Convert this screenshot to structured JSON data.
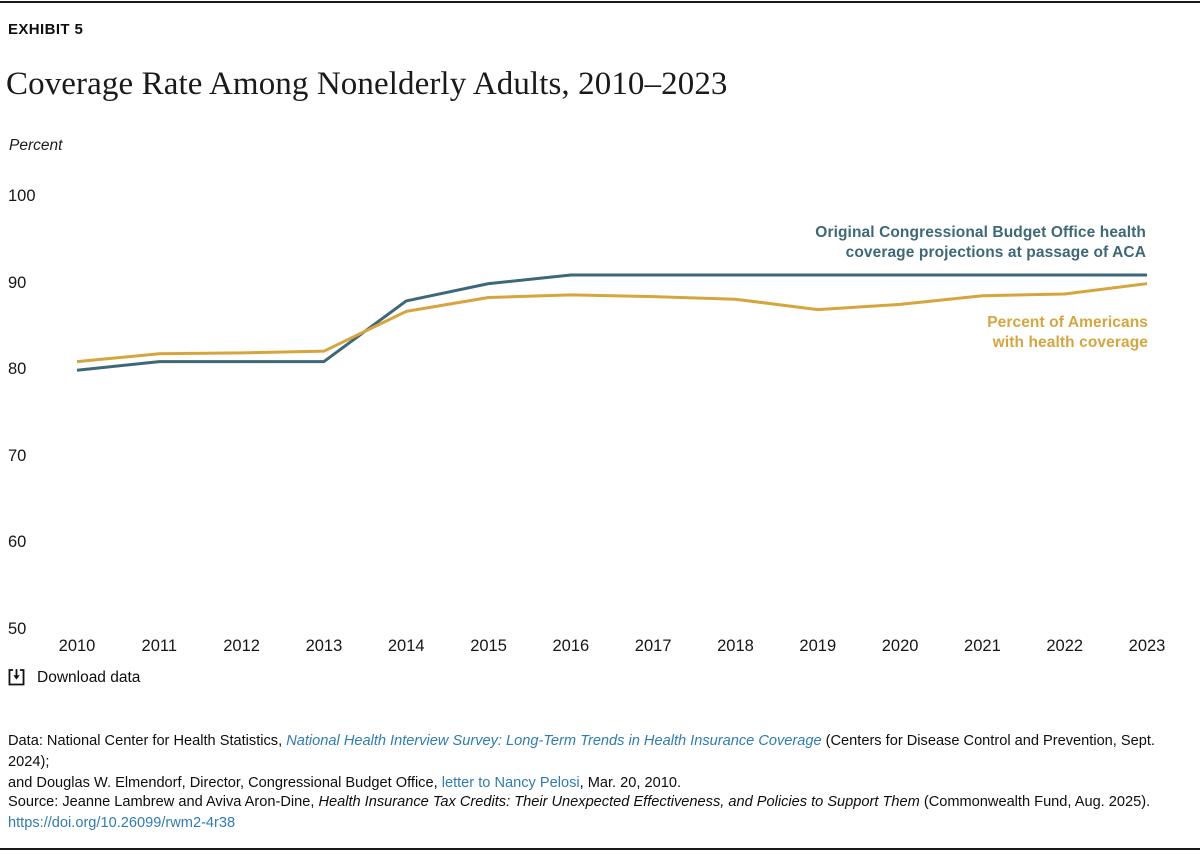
{
  "page": {
    "exhibit_label": "EXHIBIT 5",
    "title": "Coverage Rate Among Nonelderly Adults, 2010–2023",
    "y_axis_unit": "Percent"
  },
  "chart_data": {
    "type": "line",
    "title": "Coverage Rate Among Nonelderly Adults, 2010–2023",
    "ylabel": "Percent",
    "xlabel": "",
    "x": [
      2010,
      2011,
      2012,
      2013,
      2014,
      2015,
      2016,
      2017,
      2018,
      2019,
      2020,
      2021,
      2022,
      2023
    ],
    "ylim": [
      50,
      100
    ],
    "yticks": [
      100,
      90,
      80,
      70,
      60,
      50
    ],
    "grid": false,
    "legend_position": "inline-annotations",
    "series": [
      {
        "id": "cbo-projection",
        "name": "Original Congressional Budget Office health coverage projections at passage of ACA",
        "color": "#3d6878",
        "values": [
          80,
          81,
          81,
          81,
          88,
          90,
          91,
          91,
          91,
          91,
          91,
          91,
          91,
          91
        ]
      },
      {
        "id": "actual-coverage",
        "name": "Percent of Americans with health coverage",
        "color": "#d6a53e",
        "values": [
          81,
          81.9,
          82,
          82.2,
          86.8,
          88.4,
          88.7,
          88.5,
          88.2,
          87,
          87.6,
          88.6,
          88.8,
          90
        ]
      }
    ]
  },
  "annotations": {
    "cbo_line1": "Original Congressional Budget Office health",
    "cbo_line2": "coverage projections at passage of ACA",
    "actual_line1": "Percent of Americans",
    "actual_line2": "with health coverage"
  },
  "download": {
    "label": "Download data"
  },
  "footnotes": {
    "data_prefix": "Data: National Center for Health Statistics, ",
    "data_link1": "National Health Interview Survey: Long-Term Trends in Health Insurance Coverage",
    "data_mid1": " (Centers for Disease Control and Prevention, Sept. 2024);",
    "data_mid2": "and Douglas W. Elmendorf, Director, Congressional Budget Office, ",
    "data_link2": "letter to Nancy Pelosi",
    "data_suffix": ", Mar. 20, 2010.",
    "source_prefix": "Source: Jeanne Lambrew and Aviva Aron-Dine, ",
    "source_italic": "Health Insurance Tax Credits: Their Unexpected Effectiveness, and Policies to Support Them",
    "source_suffix": " (Commonwealth Fund, Aug. 2025).",
    "source_link": "https://doi.org/10.26099/rwm2-4r38"
  },
  "colors": {
    "teal": "#3d6878",
    "gold": "#d6a53e",
    "link_blue": "#2e7cb2",
    "rule_dark": "#191919"
  }
}
